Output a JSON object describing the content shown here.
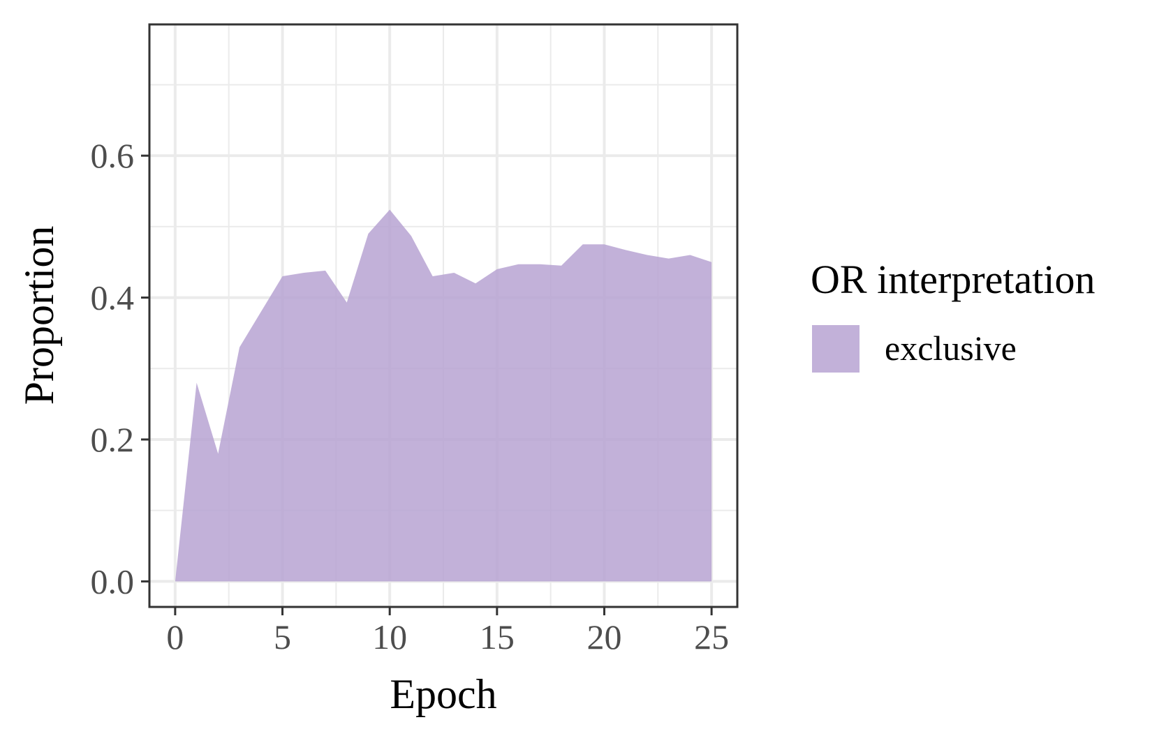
{
  "chart_data": {
    "type": "area",
    "xlabel": "Epoch",
    "ylabel": "Proportion",
    "xlim": [
      -1.2,
      26.2
    ],
    "ylim": [
      -0.036,
      0.785
    ],
    "x_major_ticks": [
      0,
      5,
      10,
      15,
      20,
      25
    ],
    "x_minor_ticks": [
      2.5,
      7.5,
      12.5,
      17.5,
      22.5
    ],
    "y_major_ticks": [
      0.0,
      0.2,
      0.4,
      0.6
    ],
    "y_minor_ticks": [
      0.1,
      0.3,
      0.5,
      0.7
    ],
    "x_tick_labels": [
      "0",
      "5",
      "10",
      "15",
      "20",
      "25"
    ],
    "y_tick_labels": [
      "0.0",
      "0.2",
      "0.4",
      "0.6"
    ],
    "grid": true,
    "legend": {
      "title": "OR interpretation",
      "position": "right"
    },
    "series": [
      {
        "name": "exclusive",
        "color": "#b7a3d2",
        "x": [
          0,
          1,
          2,
          3,
          4,
          5,
          6,
          7,
          8,
          9,
          10,
          11,
          12,
          13,
          14,
          15,
          16,
          17,
          18,
          19,
          20,
          21,
          22,
          23,
          24,
          25
        ],
        "values": [
          0.0,
          0.28,
          0.18,
          0.33,
          0.38,
          0.43,
          0.435,
          0.438,
          0.393,
          0.49,
          0.524,
          0.487,
          0.43,
          0.435,
          0.42,
          0.44,
          0.447,
          0.447,
          0.445,
          0.475,
          0.475,
          0.467,
          0.46,
          0.455,
          0.46,
          0.45
        ]
      }
    ]
  }
}
